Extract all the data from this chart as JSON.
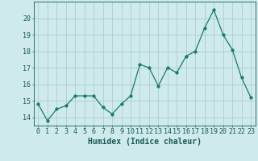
{
  "x": [
    0,
    1,
    2,
    3,
    4,
    5,
    6,
    7,
    8,
    9,
    10,
    11,
    12,
    13,
    14,
    15,
    16,
    17,
    18,
    19,
    20,
    21,
    22,
    23
  ],
  "y": [
    14.8,
    13.8,
    14.5,
    14.7,
    15.3,
    15.3,
    15.3,
    14.6,
    14.2,
    14.8,
    15.3,
    17.2,
    17.0,
    15.9,
    17.0,
    16.7,
    17.7,
    18.0,
    19.4,
    20.5,
    19.0,
    18.1,
    16.4,
    15.2
  ],
  "line_color": "#1a7a6a",
  "marker": "o",
  "marker_size": 2.5,
  "bg_color": "#ceeaea",
  "grid_color": "#a8c8c8",
  "xlabel": "Humidex (Indice chaleur)",
  "ylim": [
    13.5,
    21.0
  ],
  "xlim": [
    -0.5,
    23.5
  ],
  "yticks": [
    14,
    15,
    16,
    17,
    18,
    19,
    20
  ],
  "xticks": [
    0,
    1,
    2,
    3,
    4,
    5,
    6,
    7,
    8,
    9,
    10,
    11,
    12,
    13,
    14,
    15,
    16,
    17,
    18,
    19,
    20,
    21,
    22,
    23
  ],
  "tick_color": "#1a5a5a",
  "label_fontsize": 7.0,
  "tick_fontsize": 6.0
}
